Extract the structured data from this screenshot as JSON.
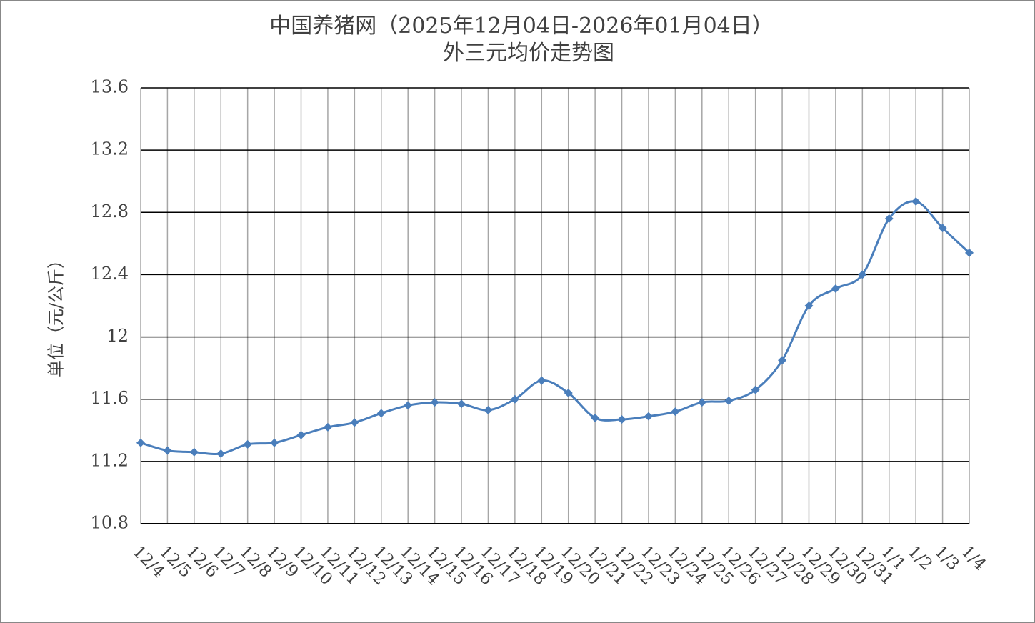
{
  "chart_data": {
    "type": "line",
    "title": "中国养猪网（2025年12月04日-2026年01月04日）",
    "subtitle": "外三元均价走势图",
    "y_label": "单位（元/公斤）",
    "categories": [
      "12/4",
      "12/5",
      "12/6",
      "12/7",
      "12/8",
      "12/9",
      "12/10",
      "12/11",
      "12/12",
      "12/13",
      "12/14",
      "12/15",
      "12/16",
      "12/17",
      "12/18",
      "12/19",
      "12/20",
      "12/21",
      "12/22",
      "12/23",
      "12/24",
      "12/25",
      "12/26",
      "12/27",
      "12/28",
      "12/29",
      "12/30",
      "12/31",
      "1/1",
      "1/2",
      "1/3",
      "1/4"
    ],
    "values": [
      11.32,
      11.27,
      11.26,
      11.25,
      11.31,
      11.32,
      11.37,
      11.42,
      11.45,
      11.51,
      11.56,
      11.58,
      11.57,
      11.53,
      11.6,
      11.72,
      11.64,
      11.48,
      11.47,
      11.49,
      11.52,
      11.58,
      11.59,
      11.66,
      11.85,
      12.2,
      12.31,
      12.4,
      12.76,
      12.87,
      12.7,
      12.54
    ],
    "color": "#4a7ebb",
    "ylim": [
      10.8,
      13.6
    ],
    "yticks": [
      10.8,
      11.2,
      11.6,
      12,
      12.4,
      12.8,
      13.2,
      13.6
    ],
    "grid": true
  }
}
